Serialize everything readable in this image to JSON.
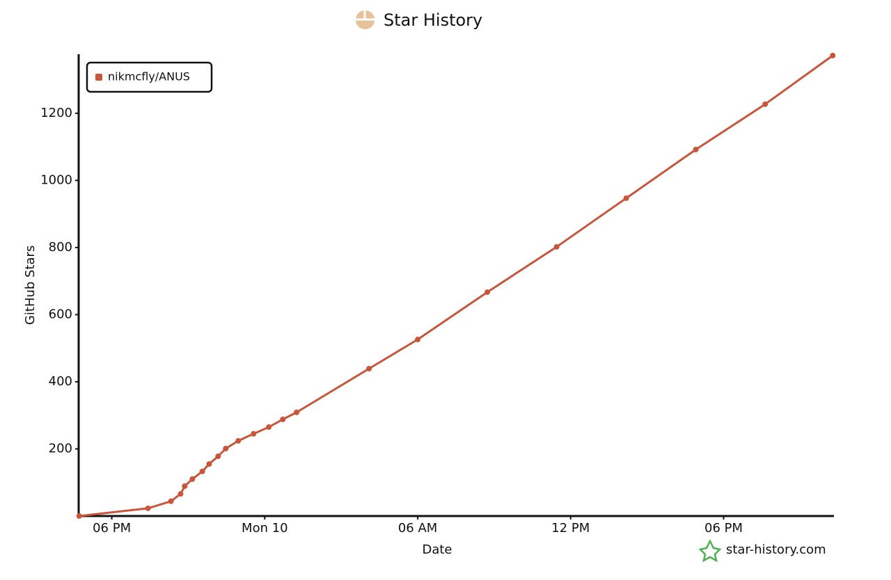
{
  "chart_data": {
    "type": "line",
    "title": "Star History",
    "x_label": "Date",
    "y_label": "GitHub Stars",
    "x": [
      16.72,
      19.42,
      20.32,
      20.7,
      20.86,
      21.16,
      21.55,
      21.82,
      22.17,
      22.47,
      22.96,
      23.56,
      24.16,
      24.71,
      25.25,
      28.09,
      30.0,
      32.73,
      35.45,
      38.18,
      40.91,
      43.63,
      46.28
    ],
    "series": [
      {
        "name": "nikmcfly/ANUS",
        "color": "#c9553a",
        "values": [
          0,
          23,
          44,
          66,
          89,
          110,
          133,
          155,
          178,
          201,
          224,
          245,
          265,
          288,
          309,
          439,
          526,
          667,
          802,
          947,
          1092,
          1227,
          1372
        ]
      }
    ],
    "xlim": [
      16.7,
      46.3
    ],
    "xticks": [
      {
        "value": 18,
        "label": "06 PM"
      },
      {
        "value": 24,
        "label": "Mon 10"
      },
      {
        "value": 30,
        "label": "06 AM"
      },
      {
        "value": 36,
        "label": "12 PM"
      },
      {
        "value": 42,
        "label": "06 PM"
      }
    ],
    "ylim": [
      0,
      1380
    ],
    "yticks": [
      200,
      400,
      600,
      800,
      1000,
      1200
    ],
    "legend": "upper left",
    "watermark": "star-history.com"
  }
}
